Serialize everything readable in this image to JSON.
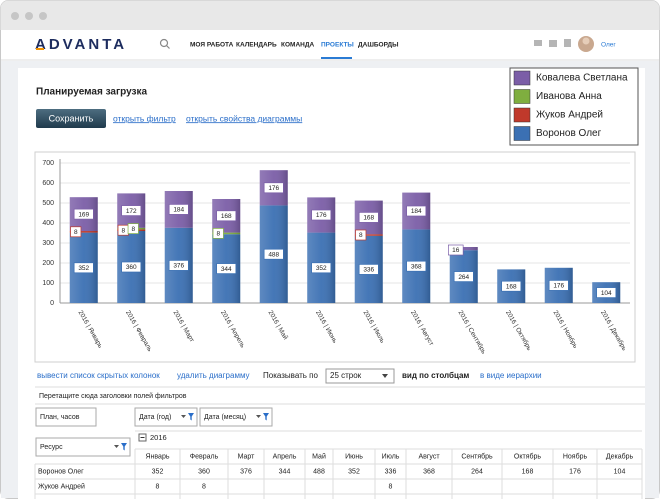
{
  "nav": {
    "logo": "ADVANTA",
    "items": [
      "МОЯ РАБОТА",
      "КАЛЕНДАРЬ",
      "КОМАНДА",
      "ПРОЕКТЫ",
      "ДАШБОРДЫ"
    ],
    "active": 3,
    "user": "Олег"
  },
  "page": {
    "title": "Планируемая загрузка",
    "save": "Сохранить",
    "links": [
      "открыть фильтр",
      "открыть свойства диаграммы"
    ]
  },
  "chart_data": {
    "type": "bar",
    "stacked": true,
    "categories": [
      "2016 | Январь",
      "2016 | Февраль",
      "2016 | Март",
      "2016 | Апрель",
      "2016 | Май",
      "2016 | Июнь",
      "2016 | Июль",
      "2016 | Август",
      "2016 | Сентябрь",
      "2016 | Октябрь",
      "2016 | Ноябрь",
      "2016 | Декабрь"
    ],
    "series": [
      {
        "name": "Воронов Олег",
        "color": "#3b70b3",
        "values": [
          352,
          360,
          376,
          344,
          488,
          352,
          336,
          368,
          264,
          168,
          176,
          104
        ]
      },
      {
        "name": "Жуков Андрей",
        "color": "#c0392b",
        "values": [
          8,
          8,
          null,
          null,
          null,
          null,
          8,
          null,
          null,
          null,
          null,
          null
        ]
      },
      {
        "name": "Иванова Анна",
        "color": "#7fae3f",
        "values": [
          null,
          8,
          null,
          8,
          null,
          null,
          null,
          null,
          null,
          null,
          null,
          null
        ]
      },
      {
        "name": "Ковалева Светлана",
        "color": "#7b5ea7",
        "values": [
          169,
          172,
          184,
          168,
          176,
          176,
          168,
          184,
          16,
          null,
          null,
          null
        ]
      }
    ],
    "ylim": [
      0,
      700
    ],
    "yticks": [
      0,
      100,
      200,
      300,
      400,
      500,
      600,
      700
    ],
    "grid": true,
    "legend": "top-right"
  },
  "toolbar": {
    "links": [
      "вывести список скрытых колонок",
      "удалить диаграмму"
    ],
    "page_size_label": "Показывать по",
    "page_size": "25 строк",
    "view_columns": "вид по столбцам",
    "view_hierarchy": "в виде иерархии"
  },
  "pivot": {
    "drop_hint": "Перетащите сюда заголовки полей фильтров",
    "measure": "План, часов",
    "filters": [
      "Дата (год)",
      "Дата (месяц)"
    ],
    "row_field": "Ресурс",
    "year": "2016",
    "months": [
      "Январь",
      "Февраль",
      "Март",
      "Апрель",
      "Май",
      "Июнь",
      "Июль",
      "Август",
      "Сентябрь",
      "Октябрь",
      "Ноябрь",
      "Декабрь"
    ],
    "rows": [
      "Воронов Олег",
      "Жуков Андрей"
    ]
  }
}
